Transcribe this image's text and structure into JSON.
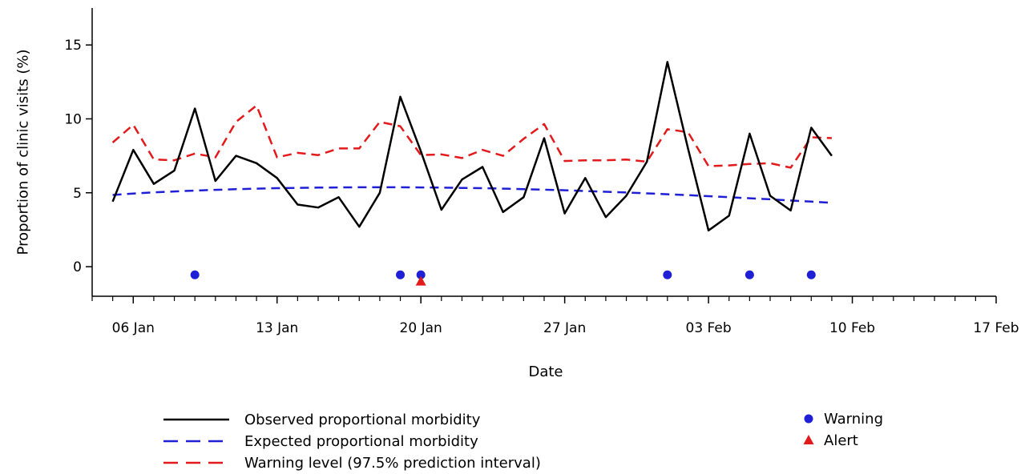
{
  "chart_data": {
    "type": "line",
    "xlabel": "Date",
    "ylabel": "Proportion of clinic visits (%)",
    "ylim": [
      -2,
      17.5
    ],
    "xlim": [
      "2019-01-04",
      "2019-02-17"
    ],
    "x_tick_labels": [
      "06 Jan",
      "13 Jan",
      "20 Jan",
      "27 Jan",
      "03 Feb",
      "10 Feb",
      "17 Feb"
    ],
    "y_ticks": [
      0,
      5,
      10,
      15
    ],
    "dates": [
      "2019-01-05",
      "2019-01-06",
      "2019-01-07",
      "2019-01-08",
      "2019-01-09",
      "2019-01-10",
      "2019-01-11",
      "2019-01-12",
      "2019-01-13",
      "2019-01-14",
      "2019-01-15",
      "2019-01-16",
      "2019-01-17",
      "2019-01-18",
      "2019-01-19",
      "2019-01-20",
      "2019-01-21",
      "2019-01-22",
      "2019-01-23",
      "2019-01-24",
      "2019-01-25",
      "2019-01-26",
      "2019-01-27",
      "2019-01-28",
      "2019-01-29",
      "2019-01-30",
      "2019-01-31",
      "2019-02-01",
      "2019-02-02",
      "2019-02-03",
      "2019-02-04",
      "2019-02-05",
      "2019-02-06",
      "2019-02-07",
      "2019-02-08",
      "2019-02-09"
    ],
    "series": [
      {
        "name": "Observed proportional morbidity",
        "color": "#000000",
        "dash": "solid",
        "values": [
          4.4,
          7.9,
          5.6,
          6.5,
          10.7,
          5.8,
          7.5,
          7.0,
          6.0,
          4.2,
          4.0,
          4.7,
          2.7,
          5.0,
          11.5,
          7.8,
          3.85,
          5.9,
          6.75,
          3.7,
          4.7,
          8.7,
          3.6,
          6.0,
          3.35,
          4.8,
          7.1,
          13.85,
          8.0,
          2.45,
          3.45,
          9.0,
          4.8,
          3.8,
          9.4,
          7.5
        ]
      },
      {
        "name": "Expected proportional morbidity",
        "color": "#1f1fd6",
        "dash": "dashed",
        "values": [
          4.85,
          4.95,
          5.03,
          5.09,
          5.15,
          5.2,
          5.24,
          5.28,
          5.31,
          5.33,
          5.35,
          5.36,
          5.37,
          5.37,
          5.37,
          5.36,
          5.35,
          5.33,
          5.31,
          5.28,
          5.25,
          5.21,
          5.17,
          5.12,
          5.07,
          5.02,
          4.96,
          4.9,
          4.84,
          4.77,
          4.7,
          4.63,
          4.56,
          4.48,
          4.4,
          4.32
        ]
      },
      {
        "name": "Warning level (97.5% prediction interval)",
        "color": "#e31a1c",
        "dash": "dashed",
        "values": [
          8.4,
          9.6,
          7.25,
          7.2,
          7.65,
          7.4,
          9.8,
          10.9,
          7.4,
          7.7,
          7.55,
          8.0,
          8.0,
          9.8,
          9.5,
          7.55,
          7.6,
          7.35,
          7.9,
          7.5,
          8.65,
          9.65,
          7.15,
          7.2,
          7.2,
          7.25,
          7.1,
          9.3,
          9.1,
          6.8,
          6.85,
          6.95,
          7.0,
          6.7,
          8.75,
          8.7
        ]
      }
    ],
    "markers": [
      {
        "name": "Warning",
        "shape": "circle",
        "color": "#1f1fd6",
        "y": -0.55,
        "dates": [
          "2019-01-09",
          "2019-01-19",
          "2019-01-20",
          "2019-02-01",
          "2019-02-05",
          "2019-02-08"
        ]
      },
      {
        "name": "Alert",
        "shape": "triangle",
        "color": "#e31a1c",
        "y": -0.95,
        "dates": [
          "2019-01-20"
        ]
      }
    ],
    "legend": {
      "lines": [
        "Observed proportional morbidity",
        "Expected proportional morbidity",
        "Warning level (97.5% prediction interval)"
      ],
      "points": [
        "Warning",
        "Alert"
      ],
      "placement": "bottom"
    },
    "grid": false
  }
}
